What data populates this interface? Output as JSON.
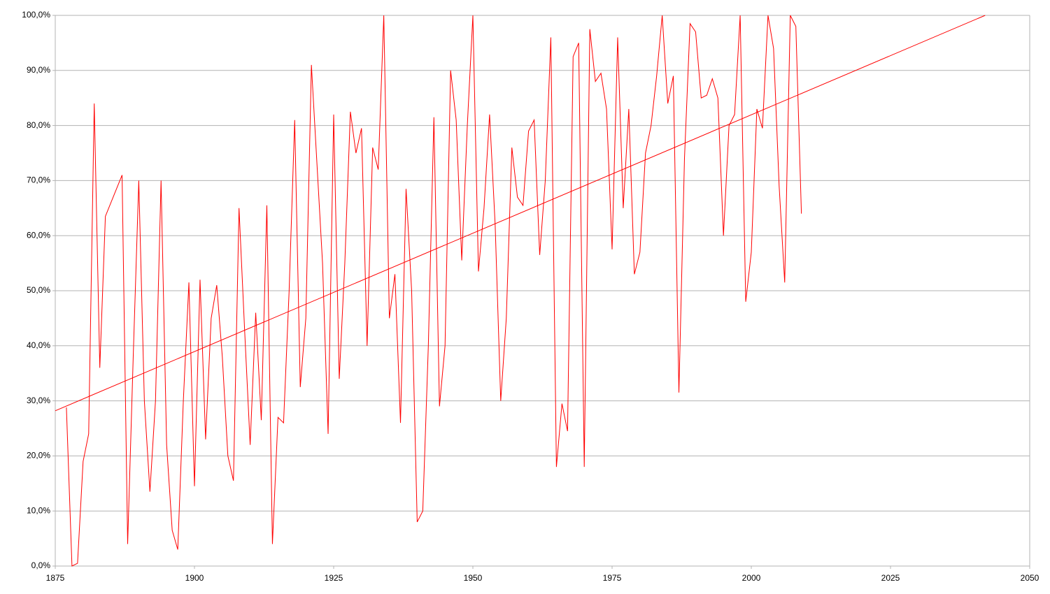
{
  "chart_data": {
    "type": "line",
    "xlim": [
      1875,
      2050
    ],
    "xticks": [
      1875,
      1900,
      1925,
      1950,
      1975,
      2000,
      2025,
      2050
    ],
    "ylim": [
      0,
      100
    ],
    "yticks": [
      {
        "value": 0,
        "label": "0,0%"
      },
      {
        "value": 10,
        "label": "10,0%"
      },
      {
        "value": 20,
        "label": "20,0%"
      },
      {
        "value": 30,
        "label": "30,0%"
      },
      {
        "value": 40,
        "label": "40,0%"
      },
      {
        "value": 50,
        "label": "50,0%"
      },
      {
        "value": 60,
        "label": "60,0%"
      },
      {
        "value": 70,
        "label": "70,0%"
      },
      {
        "value": 80,
        "label": "80,0%"
      },
      {
        "value": 90,
        "label": "90,0%"
      },
      {
        "value": 100,
        "label": "100,0%"
      }
    ],
    "grid": true,
    "series": [
      {
        "color": "#ff0000",
        "x": [
          1877,
          1878,
          1879,
          1880,
          1881,
          1882,
          1883,
          1884,
          1887,
          1888,
          1889,
          1890,
          1891,
          1892,
          1893,
          1894,
          1895,
          1896,
          1897,
          1898,
          1899,
          1900,
          1901,
          1902,
          1903,
          1904,
          1905,
          1906,
          1907,
          1908,
          1909,
          1910,
          1911,
          1912,
          1913,
          1914,
          1915,
          1916,
          1917,
          1918,
          1919,
          1920,
          1921,
          1922,
          1923,
          1924,
          1925,
          1926,
          1927,
          1928,
          1929,
          1930,
          1931,
          1932,
          1933,
          1934,
          1935,
          1936,
          1937,
          1938,
          1939,
          1940,
          1941,
          1942,
          1943,
          1944,
          1945,
          1946,
          1947,
          1948,
          1949,
          1950,
          1951,
          1952,
          1953,
          1954,
          1955,
          1956,
          1957,
          1958,
          1959,
          1960,
          1961,
          1962,
          1963,
          1964,
          1965,
          1966,
          1967,
          1968,
          1969,
          1970,
          1971,
          1972,
          1973,
          1974,
          1975,
          1976,
          1977,
          1978,
          1979,
          1980,
          1981,
          1982,
          1983,
          1984,
          1985,
          1986,
          1987,
          1988,
          1989,
          1990,
          1991,
          1992,
          1993,
          1994,
          1995,
          1996,
          1997,
          1998,
          1999,
          2000,
          2001,
          2002,
          2003,
          2004,
          2005,
          2006,
          2007,
          2008,
          2009
        ],
        "values": [
          28.8,
          0,
          0.5,
          19,
          24,
          84,
          36,
          63.5,
          71,
          4,
          38,
          70,
          30,
          13.5,
          30,
          70,
          22,
          6.5,
          3,
          30,
          51.5,
          14.5,
          52,
          23,
          45,
          51,
          38,
          20,
          15.5,
          65,
          43,
          22,
          46,
          26.5,
          65.5,
          4,
          27,
          26,
          50,
          81,
          32.5,
          45,
          91,
          73,
          55,
          24,
          82,
          34,
          55,
          82.5,
          75,
          79.5,
          40,
          76,
          72,
          100,
          45,
          53,
          26,
          68.5,
          50,
          8,
          10,
          40,
          81.5,
          29,
          40,
          90,
          81,
          55.5,
          80,
          100,
          53.5,
          65,
          82,
          62,
          30,
          45,
          76,
          67,
          65.5,
          79,
          81,
          56.5,
          70,
          96,
          18,
          29.5,
          24.5,
          92.5,
          95,
          18,
          97.5,
          88,
          89.5,
          83,
          57.5,
          96,
          65,
          83,
          53,
          57,
          75,
          80,
          89,
          100,
          84,
          89,
          31.5,
          74,
          98.5,
          97,
          85,
          85.5,
          88.5,
          85,
          60,
          80,
          82,
          100,
          48,
          57,
          83,
          79.5,
          100,
          94,
          69,
          51.5,
          100,
          98,
          64
        ]
      },
      {
        "color": "#ff0000",
        "x": [
          1875,
          2042
        ],
        "values": [
          28.2,
          100
        ]
      }
    ]
  }
}
